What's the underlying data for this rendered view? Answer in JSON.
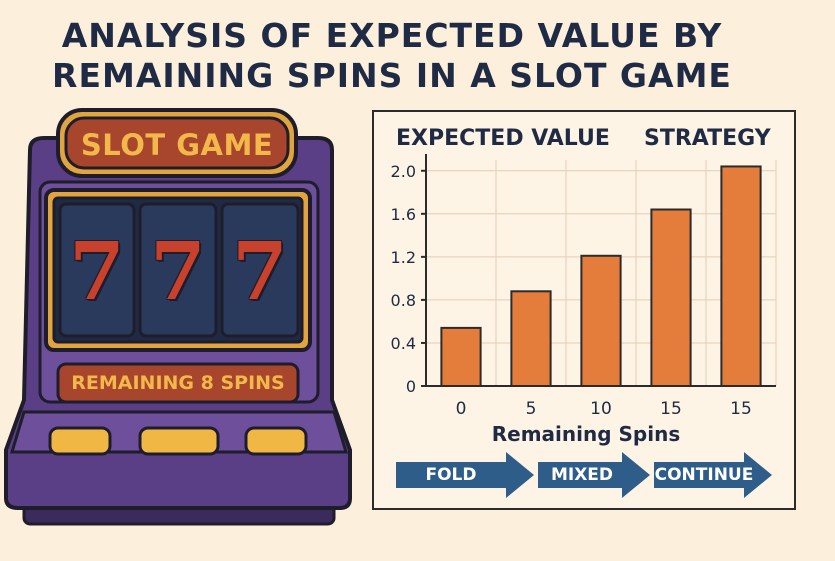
{
  "title_line1": "ANALYSIS OF EXPECTED VALUE BY",
  "title_line2": "REMAINING SPINS IN A SLOT GAME",
  "slot_machine": {
    "sign": "SLOT GAME",
    "reels": [
      "7",
      "7",
      "7"
    ],
    "remaining_label": "REMAINING 8 SPINS",
    "buttons": 3
  },
  "chart_headers": {
    "left": "EXPECTED VALUE",
    "right": "STRATEGY"
  },
  "strategy_arrows": [
    "FOLD",
    "MIXED",
    "CONTINUE"
  ],
  "colors": {
    "background": "#fcefdc",
    "bar": "#e47d3c",
    "arrow": "#2f5d89",
    "title": "#1f2a44",
    "machine_purple": "#5b3f86",
    "sign_red": "#a8462d",
    "accent_gold": "#f3b84a"
  },
  "chart_data": {
    "type": "bar",
    "categories": [
      "0",
      "5",
      "10",
      "15",
      "15"
    ],
    "values": [
      0.54,
      0.88,
      1.21,
      1.64,
      2.04
    ],
    "yticks": [
      "0",
      "0.4",
      "0.8",
      "1.2",
      "1.6",
      "2.0"
    ],
    "ylim": [
      0,
      2.1
    ],
    "xlabel": "Remaining Spins",
    "ylabel": "",
    "grid": true
  }
}
